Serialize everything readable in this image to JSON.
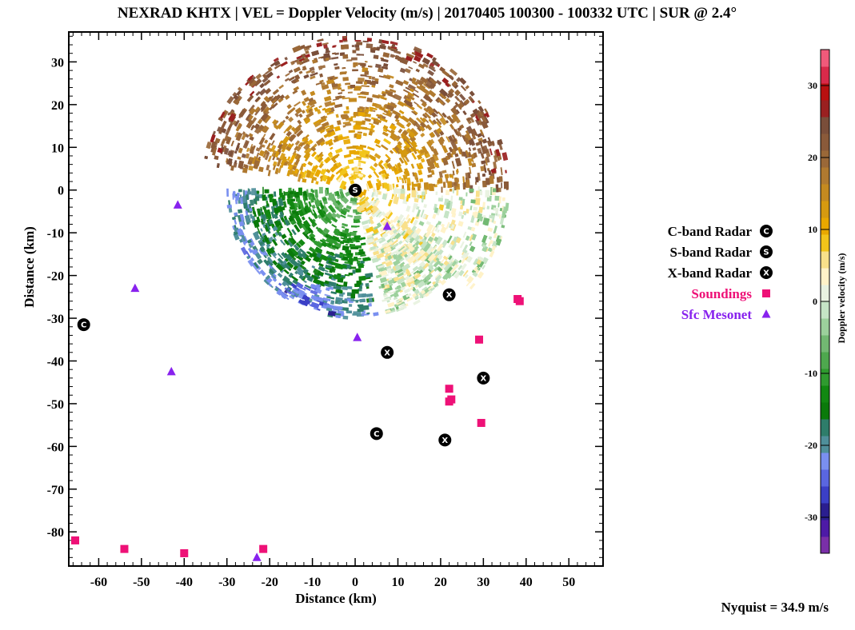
{
  "colors": {
    "csr_marker": "#000000",
    "sounding": "#ee1177",
    "mesonet": "#8822ee",
    "frame": "#000000",
    "velocity_scale": [
      "#7a2fa8",
      "#4d1aa6",
      "#2a1e8f",
      "#3b3fc6",
      "#5a66e0",
      "#7a8ff0",
      "#4f8f9a",
      "#2e7d6a",
      "#0a7a0a",
      "#118811",
      "#2f9a2f",
      "#4ea84e",
      "#72b872",
      "#9cd09c",
      "#c6e4c6",
      "#e8f2e0",
      "#fff2c8",
      "#f8e08a",
      "#f2c41a",
      "#e8a800",
      "#d69a10",
      "#c48a20",
      "#b07a30",
      "#9a6838",
      "#8a5a3a",
      "#7a4e3a",
      "#9a2020",
      "#b81010",
      "#d82a4a",
      "#f05a7a"
    ]
  },
  "chart_data": {
    "type": "scatter",
    "title": "NEXRAD KHTX | VEL = Doppler Velocity (m/s) | 20170405 100300 - 100332 UTC | SUR @ 2.4°",
    "xlabel": "Distance (km)",
    "ylabel": "Distance (km)",
    "xlim": [
      -67,
      58
    ],
    "ylim": [
      -88,
      37
    ],
    "xticks": [
      -60,
      -50,
      -40,
      -30,
      -20,
      -10,
      0,
      10,
      20,
      30,
      40,
      50
    ],
    "yticks": [
      -80,
      -70,
      -60,
      -50,
      -40,
      -30,
      -20,
      -10,
      0,
      10,
      20,
      30
    ],
    "legend_position": "right",
    "series": [
      {
        "name": "C-band Radar",
        "marker": "circle-letter",
        "letter": "C",
        "points": [
          [
            -63.5,
            -31.5
          ],
          [
            5,
            -57
          ]
        ]
      },
      {
        "name": "S-band Radar",
        "marker": "circle-letter",
        "letter": "S",
        "points": [
          [
            0,
            0
          ]
        ]
      },
      {
        "name": "X-band Radar",
        "marker": "circle-letter",
        "letter": "X",
        "points": [
          [
            22,
            -24.5
          ],
          [
            7.5,
            -38
          ],
          [
            30,
            -44
          ],
          [
            21,
            -58.5
          ]
        ]
      },
      {
        "name": "Soundings",
        "marker": "square",
        "points": [
          [
            38,
            -25.5
          ],
          [
            38.5,
            -26
          ],
          [
            29,
            -35
          ],
          [
            22,
            -46.5
          ],
          [
            22,
            -49.5
          ],
          [
            22.5,
            -49
          ],
          [
            29.5,
            -54.5
          ],
          [
            -65.5,
            -82
          ],
          [
            -54,
            -84
          ],
          [
            -40,
            -85
          ],
          [
            -21.5,
            -84
          ]
        ]
      },
      {
        "name": "Sfc Mesonet",
        "marker": "triangle",
        "points": [
          [
            -41.5,
            -3.5
          ],
          [
            -51.5,
            -23
          ],
          [
            -43,
            -42.5
          ],
          [
            0.5,
            -34.5
          ],
          [
            7.5,
            -8.5
          ],
          [
            -23,
            -86
          ]
        ]
      }
    ],
    "colorbar": {
      "label": "Doppler velocity (m/s)",
      "range": [
        -35,
        35
      ],
      "ticks": [
        -30,
        -20,
        -10,
        0,
        10,
        20,
        30
      ]
    },
    "annotation": "Nyquist = 34.9 m/s"
  }
}
